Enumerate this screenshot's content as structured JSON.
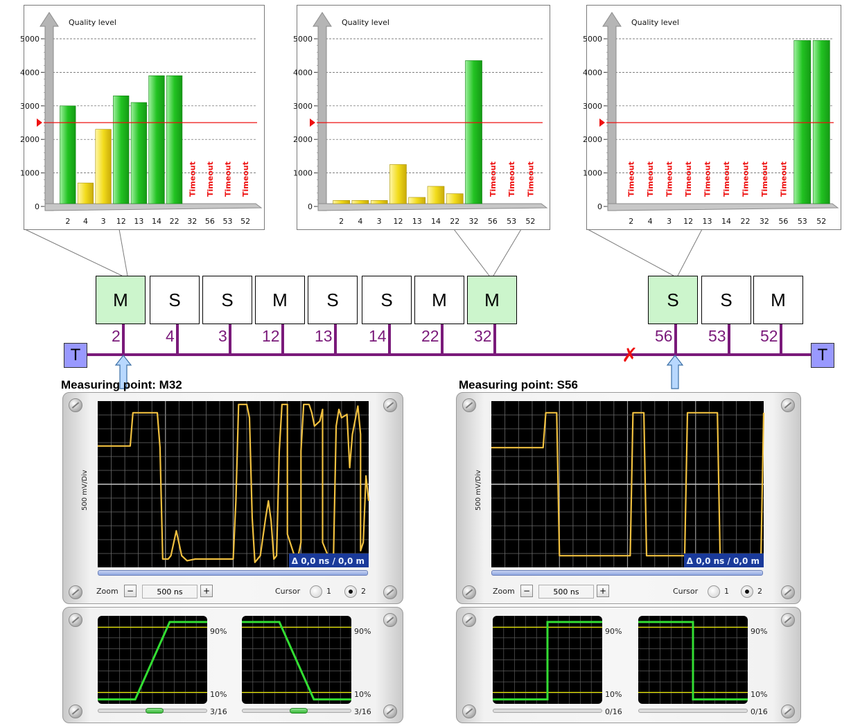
{
  "charts": [
    {
      "id": "left",
      "ylabel": "Quality level",
      "categories": [
        "2",
        "4",
        "3",
        "12",
        "13",
        "14",
        "22",
        "32",
        "56",
        "53",
        "52"
      ],
      "values": [
        3000,
        700,
        2300,
        3300,
        3100,
        3900,
        3900,
        null,
        null,
        null,
        null
      ],
      "colors": [
        "green",
        "yellow",
        "yellow",
        "green",
        "green",
        "green",
        "green",
        "",
        "",
        "",
        ""
      ],
      "timeout_label": "Timeout",
      "threshold": 2500,
      "yticks": [
        "0",
        "1000",
        "2000",
        "3000",
        "4000",
        "5000"
      ]
    },
    {
      "id": "middle",
      "ylabel": "Quality level",
      "categories": [
        "2",
        "4",
        "3",
        "12",
        "13",
        "14",
        "22",
        "32",
        "56",
        "53",
        "52"
      ],
      "values": [
        180,
        180,
        180,
        1250,
        270,
        600,
        380,
        4350,
        null,
        null,
        null
      ],
      "colors": [
        "yellow",
        "yellow",
        "yellow",
        "yellow",
        "yellow",
        "yellow",
        "yellow",
        "green",
        "",
        "",
        ""
      ],
      "timeout_label": "Timeout",
      "threshold": 2500,
      "yticks": [
        "0",
        "1000",
        "2000",
        "3000",
        "4000",
        "5000"
      ]
    },
    {
      "id": "right",
      "ylabel": "Quality level",
      "categories": [
        "2",
        "4",
        "3",
        "12",
        "13",
        "14",
        "22",
        "32",
        "56",
        "53",
        "52"
      ],
      "values": [
        null,
        null,
        null,
        null,
        null,
        null,
        null,
        null,
        null,
        4950,
        4950
      ],
      "colors": [
        "",
        "",
        "",
        "",
        "",
        "",
        "",
        "",
        "",
        "green",
        "green"
      ],
      "timeout_label": "Timeout",
      "threshold": 2500,
      "yticks": [
        "0",
        "1000",
        "2000",
        "3000",
        "4000",
        "5000"
      ]
    }
  ],
  "chart_data": [
    {
      "type": "bar",
      "ylabel": "Quality level",
      "categories": [
        "2",
        "4",
        "3",
        "12",
        "13",
        "14",
        "22",
        "32",
        "56",
        "53",
        "52"
      ],
      "values": [
        3000,
        700,
        2300,
        3300,
        3100,
        3900,
        3900,
        null,
        null,
        null,
        null
      ],
      "ylim": [
        0,
        5000
      ],
      "threshold": 2500,
      "annotations": [
        "Timeout",
        "Timeout",
        "Timeout",
        "Timeout"
      ]
    },
    {
      "type": "bar",
      "ylabel": "Quality level",
      "categories": [
        "2",
        "4",
        "3",
        "12",
        "13",
        "14",
        "22",
        "32",
        "56",
        "53",
        "52"
      ],
      "values": [
        180,
        180,
        180,
        1250,
        270,
        600,
        380,
        4350,
        null,
        null,
        null
      ],
      "ylim": [
        0,
        5000
      ],
      "threshold": 2500,
      "annotations": [
        "Timeout",
        "Timeout",
        "Timeout"
      ]
    },
    {
      "type": "bar",
      "ylabel": "Quality level",
      "categories": [
        "2",
        "4",
        "3",
        "12",
        "13",
        "14",
        "22",
        "32",
        "56",
        "53",
        "52"
      ],
      "values": [
        null,
        null,
        null,
        null,
        null,
        null,
        null,
        null,
        null,
        4950,
        4950
      ],
      "ylim": [
        0,
        5000
      ],
      "threshold": 2500,
      "annotations": [
        "Timeout",
        "Timeout",
        "Timeout",
        "Timeout",
        "Timeout",
        "Timeout",
        "Timeout",
        "Timeout",
        "Timeout"
      ]
    }
  ],
  "bus": {
    "terminator_left": "T",
    "terminator_right": "T",
    "fault_marker": "✗",
    "nodes": [
      {
        "role": "M",
        "addr": "2",
        "highlight": true
      },
      {
        "role": "S",
        "addr": "4",
        "highlight": false
      },
      {
        "role": "S",
        "addr": "3",
        "highlight": false
      },
      {
        "role": "M",
        "addr": "12",
        "highlight": false
      },
      {
        "role": "S",
        "addr": "13",
        "highlight": false
      },
      {
        "role": "S",
        "addr": "14",
        "highlight": false
      },
      {
        "role": "M",
        "addr": "22",
        "highlight": false
      },
      {
        "role": "M",
        "addr": "32",
        "highlight": true
      },
      {
        "role": "S",
        "addr": "56",
        "highlight": true
      },
      {
        "role": "S",
        "addr": "53",
        "highlight": false
      },
      {
        "role": "M",
        "addr": "52",
        "highlight": false
      }
    ]
  },
  "scopes": [
    {
      "title": "Measuring point: M32",
      "vdiv": "500 mV/Div",
      "readout": "Δ 0,0 ns / 0,0 m",
      "zoom_label": "Zoom",
      "zoom_value": "500 ns",
      "cursor_label": "Cursor",
      "cursor_opt1": "1",
      "cursor_opt2": "2",
      "cursor_selected": 2,
      "edge_hi": "90%",
      "edge_lo": "10%",
      "rise_count": "3/16",
      "fall_count": "3/16",
      "rise_slider": 0.45,
      "fall_slider": 0.45
    },
    {
      "title": "Measuring point: S56",
      "vdiv": "500 mV/Div",
      "readout": "Δ 0,0 ns / 0,0 m",
      "zoom_label": "Zoom",
      "zoom_value": "500 ns",
      "cursor_label": "Cursor",
      "cursor_opt1": "1",
      "cursor_opt2": "2",
      "cursor_selected": 2,
      "edge_hi": "90%",
      "edge_lo": "10%",
      "rise_count": "0/16",
      "fall_count": "0/16",
      "rise_slider": 0,
      "fall_slider": 0
    }
  ],
  "colors": {
    "bar_green": "#22c322",
    "bar_yellow": "#f2dc1c",
    "timeout_red": "#ee1111",
    "threshold_red": "#ee1111",
    "bus_purple": "#7a1a7a",
    "node_highlight": "#ccf5cc",
    "terminator": "#9999ff",
    "arrow_blue": "#b8d8ff",
    "scope_trace": "#f0c040",
    "scope_grid": "#6b6b6b",
    "edge_trace": "#33dd33",
    "edge_ref": "#e8e800"
  }
}
